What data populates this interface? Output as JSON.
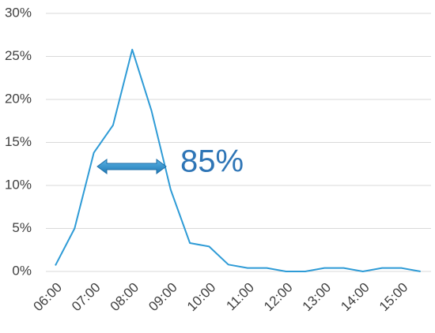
{
  "chart_data": {
    "type": "line",
    "categories": [
      "06:00",
      null,
      "07:00",
      null,
      "08:00",
      null,
      "09:00",
      null,
      "10:00",
      null,
      "11:00",
      null,
      "12:00",
      null,
      "13:00",
      null,
      "14:00",
      null,
      "15:00",
      null
    ],
    "series": [
      {
        "color": "#2e9bd6",
        "values": [
          0.7,
          5,
          13.8,
          17,
          25.8,
          18.7,
          9.5,
          3.3,
          2.9,
          0.8,
          0.4,
          0.4,
          0,
          0,
          0.4,
          0.4,
          0,
          0.4,
          0.4,
          0
        ]
      }
    ],
    "ylim": [
      0,
      30
    ],
    "yticks": [
      {
        "value": 0,
        "label": "0%"
      },
      {
        "value": 5,
        "label": "5%"
      },
      {
        "value": 10,
        "label": "10%"
      },
      {
        "value": 15,
        "label": "15%"
      },
      {
        "value": 20,
        "label": "20%"
      },
      {
        "value": 25,
        "label": "25%"
      },
      {
        "value": 30,
        "label": "30%"
      }
    ],
    "grid": true,
    "annotation": {
      "text": "85%",
      "color": "#2e75b6"
    }
  }
}
